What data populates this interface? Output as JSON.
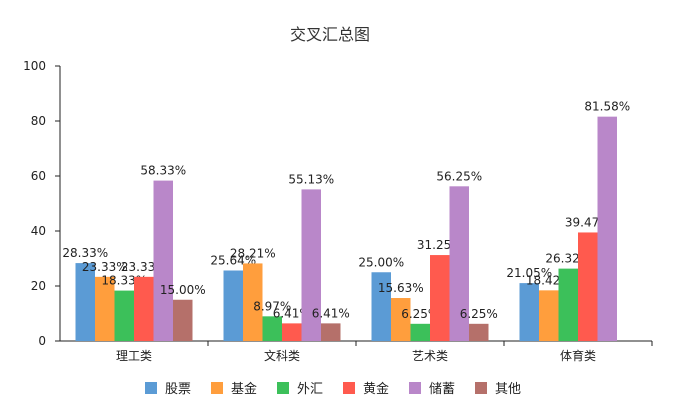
{
  "chart_data": {
    "type": "bar",
    "title": "交叉汇总图",
    "xlabel": "",
    "ylabel": "",
    "ylim": [
      0,
      100
    ],
    "yticks": [
      0,
      20,
      40,
      60,
      80,
      100
    ],
    "categories": [
      "理工类",
      "文科类",
      "艺术类",
      "体育类"
    ],
    "series": [
      {
        "name": "股票",
        "color": "#5B9BD5",
        "values": [
          28.33,
          25.64,
          25.0,
          21.05
        ],
        "labels": [
          "28.33%",
          "25.64%",
          "25.00%",
          "21.05%"
        ]
      },
      {
        "name": "基金",
        "color": "#FF9E3D",
        "values": [
          23.33,
          28.21,
          15.63,
          18.42
        ],
        "labels": [
          "23.33%",
          "28.21%",
          "15.63%",
          "18.42%"
        ]
      },
      {
        "name": "外汇",
        "color": "#3CC05A",
        "values": [
          18.33,
          8.97,
          6.25,
          26.32
        ],
        "labels": [
          "18.33%",
          "8.97%",
          "6.25%",
          "26.32%"
        ]
      },
      {
        "name": "黄金",
        "color": "#FF5A4E",
        "values": [
          23.33,
          6.41,
          31.25,
          39.47
        ],
        "labels": [
          "23.33%",
          "6.41%",
          "31.25%",
          "39.47%"
        ]
      },
      {
        "name": "储蓄",
        "color": "#B987C9",
        "values": [
          58.33,
          55.13,
          56.25,
          81.58
        ],
        "labels": [
          "58.33%",
          "55.13%",
          "56.25%",
          "81.58%"
        ]
      },
      {
        "name": "其他",
        "color": "#B5706A",
        "values": [
          15.0,
          6.41,
          6.25,
          0
        ],
        "labels": [
          "15.00%",
          "6.41%",
          "6.25%",
          ""
        ]
      }
    ],
    "grid": false,
    "legend": "bottom"
  }
}
